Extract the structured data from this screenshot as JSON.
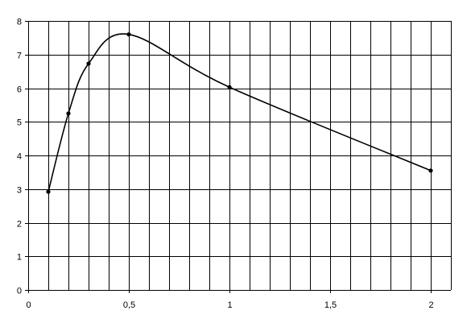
{
  "chart_data": {
    "type": "line",
    "title": "",
    "xlabel": "",
    "ylabel": "",
    "xlim": [
      0,
      2.1
    ],
    "ylim": [
      0,
      8
    ],
    "x_ticks": [
      0,
      0.5,
      1,
      1.5,
      2
    ],
    "x_tick_labels": [
      "0",
      "0,5",
      "1",
      "1,5",
      "2"
    ],
    "x_grid_step": 0.1,
    "y_ticks": [
      0,
      1,
      2,
      3,
      4,
      5,
      6,
      7,
      8
    ],
    "y_tick_labels": [
      "0",
      "1",
      "2",
      "3",
      "4",
      "5",
      "6",
      "7",
      "8"
    ],
    "grid": true,
    "legend": "none",
    "smooth": true,
    "markers": true,
    "series": [
      {
        "x": [
          0.1,
          0.2,
          0.3,
          0.5,
          1.0,
          2.0
        ],
        "values": [
          2.92,
          5.25,
          6.73,
          7.6,
          6.03,
          3.55
        ]
      }
    ],
    "colors": {
      "line": "#000000",
      "grid": "#000000",
      "background": "#ffffff"
    }
  }
}
